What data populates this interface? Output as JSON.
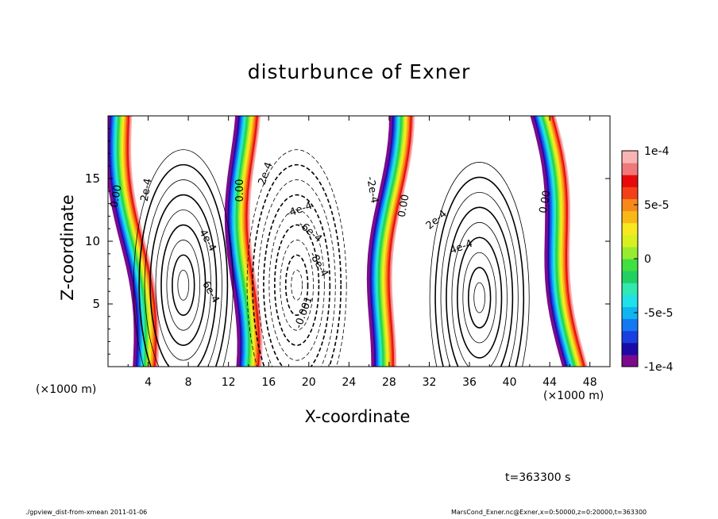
{
  "page": {
    "title": "disturbunce of Exner",
    "time_label": "t=363300 s",
    "footer_left": "./gpview_dist-from-xmean   2011-01-06",
    "footer_right": "MarsCond_Exner.nc@Exner,x=0:50000,z=0:20000,t=363300"
  },
  "chart_data": {
    "type": "heatmap",
    "title": "disturbunce of Exner",
    "xlabel": "X-coordinate",
    "ylabel": "Z-coordinate",
    "x_unit_left": "(×1000 m)",
    "x_unit_right": "(×1000 m)",
    "xlim": [
      0,
      50
    ],
    "ylim": [
      0,
      20
    ],
    "x_ticks": [
      4,
      8,
      12,
      16,
      20,
      24,
      28,
      32,
      36,
      40,
      44,
      48
    ],
    "y_ticks": [
      5,
      10,
      15
    ],
    "colorbar": {
      "range": [
        -0.0001,
        0.0001
      ],
      "ticks": [
        {
          "value": 0.0001,
          "label": "1e-4"
        },
        {
          "value": 5e-05,
          "label": "5e-5"
        },
        {
          "value": 0,
          "label": "0"
        },
        {
          "value": -5e-05,
          "label": "-5e-5"
        },
        {
          "value": -0.0001,
          "label": "-1e-4"
        }
      ],
      "colors": [
        "#7b0a8e",
        "#1a0aa8",
        "#1a3ee0",
        "#1478f0",
        "#10b4f2",
        "#20e0e8",
        "#30e8b0",
        "#20d060",
        "#40e040",
        "#98ec30",
        "#d8f020",
        "#f8e820",
        "#f8b818",
        "#f88818",
        "#f44018",
        "#e80a0a",
        "#f07878",
        "#f8b4b4"
      ]
    },
    "contour_labels": [
      "0.00",
      "2e-4",
      "4e-4",
      "6e-4",
      "8e-4",
      "-2e-4",
      "-4e-4",
      "-6e-4",
      "-8e-4",
      "-0.001"
    ],
    "features": [
      {
        "kind": "zero_band",
        "x_top": 1.2,
        "x_bottom": 3.8
      },
      {
        "kind": "zero_band",
        "x_top": 13.5,
        "x_bottom": 13.6
      },
      {
        "kind": "zero_band",
        "x_top": 28.8,
        "x_bottom": 27.0
      },
      {
        "kind": "zero_band",
        "x_top": 43.3,
        "x_bottom": 46.5
      },
      {
        "kind": "positive_max",
        "x": 7.5,
        "z": 6.5
      },
      {
        "kind": "negative_min",
        "x": 18.8,
        "z": 6.5
      },
      {
        "kind": "positive_max",
        "x": 37.0,
        "z": 5.5
      }
    ]
  }
}
